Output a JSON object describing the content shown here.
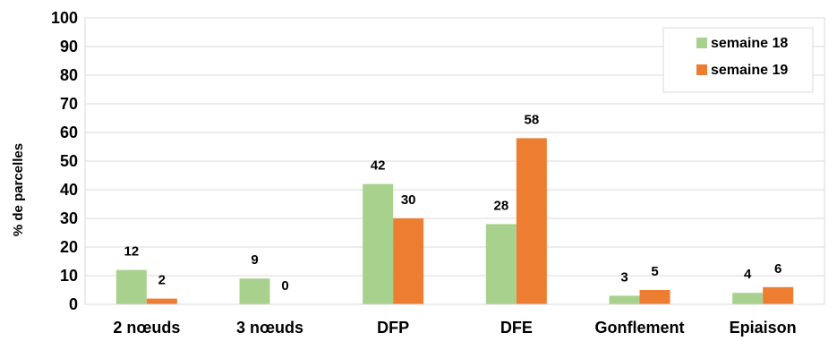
{
  "chart_data": {
    "type": "bar",
    "title": "",
    "xlabel": "",
    "ylabel": "% de parcelles",
    "ylim": [
      0,
      100
    ],
    "yticks": [
      0,
      10,
      20,
      30,
      40,
      50,
      60,
      70,
      80,
      90,
      100
    ],
    "grid": true,
    "legend_position": "top-right",
    "categories": [
      "2 nœuds",
      "3 nœuds",
      "DFP",
      "DFE",
      "Gonflement",
      "Epiaison"
    ],
    "series": [
      {
        "name": "semaine 18",
        "color": "#a9d18e",
        "values": [
          12,
          9,
          42,
          28,
          3,
          4
        ],
        "labels": [
          "12",
          "9",
          "42",
          "28",
          "3",
          "4"
        ]
      },
      {
        "name": "semaine 19",
        "color": "#ed7d31",
        "values": [
          2,
          0,
          30,
          58,
          5,
          6
        ],
        "labels": [
          "2",
          "0",
          "30",
          "58",
          "5",
          "6"
        ]
      }
    ]
  }
}
